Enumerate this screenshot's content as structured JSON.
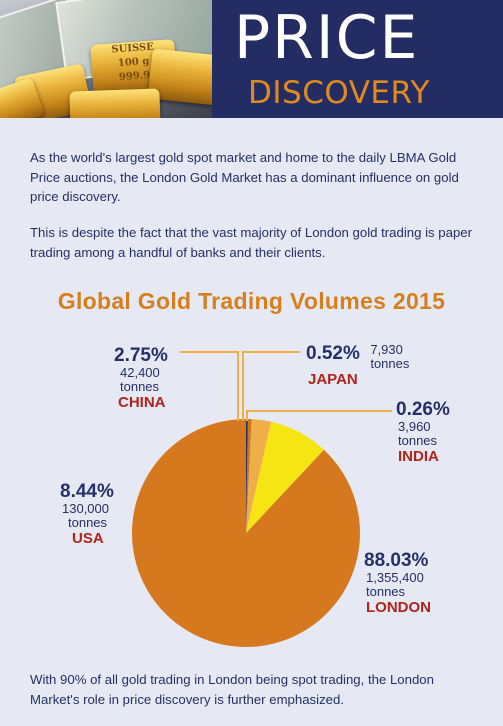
{
  "header": {
    "title_line1": "PRICE",
    "title_line2": "DISCOVERY",
    "bar_text_1": "SUISSE",
    "bar_text_2": "100 g",
    "bar_text_3": "999.9"
  },
  "intro": {
    "paragraph1": "As the world's largest gold spot market and home to the daily LBMA Gold Price auctions, the London Gold Market has a dominant influence on gold price discovery.",
    "paragraph2": "This is despite the fact that the vast majority of London gold trading is paper trading among a handful of banks and their clients."
  },
  "chart_data": {
    "type": "pie",
    "title": "Global Gold Trading Volumes 2015",
    "slices": [
      {
        "label": "LONDON",
        "percent": 88.03,
        "percent_text": "88.03%",
        "amount": "1,355,400",
        "unit": "tonnes",
        "color": "#d6781d"
      },
      {
        "label": "USA",
        "percent": 8.44,
        "percent_text": "8.44%",
        "amount": "130,000",
        "unit": "tonnes",
        "color": "#f5e512"
      },
      {
        "label": "CHINA",
        "percent": 2.75,
        "percent_text": "2.75%",
        "amount": "42,400",
        "unit": "tonnes",
        "color": "#efae4a"
      },
      {
        "label": "JAPAN",
        "percent": 0.52,
        "percent_text": "0.52%",
        "amount": "7,930",
        "unit": "tonnes",
        "color": "#c97a15"
      },
      {
        "label": "INDIA",
        "percent": 0.26,
        "percent_text": "0.26%",
        "amount": "3,960",
        "unit": "tonnes",
        "color": "#23306a"
      }
    ],
    "start_angle_deg": 0,
    "direction": "counterclockwise",
    "leader_color": "#efae4a"
  },
  "footer": {
    "paragraph": "With 90% of all gold trading in London being spot trading, the London Market's role in price discovery is further emphasized."
  },
  "colors": {
    "navy": "#23306a",
    "orange": "#d77f1c",
    "red": "#b2231a",
    "background": "#e6e9f3"
  }
}
